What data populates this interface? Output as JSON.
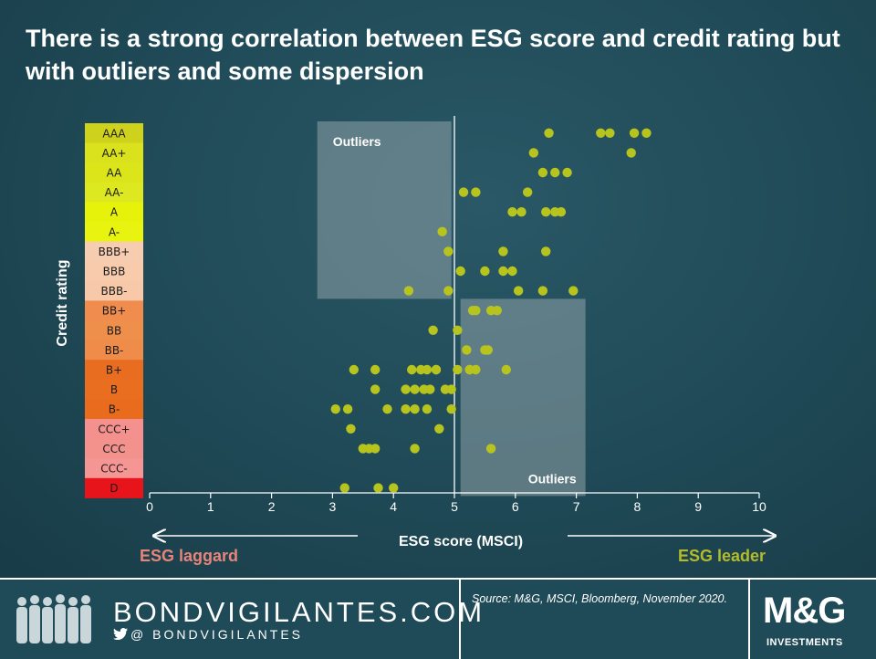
{
  "title": "There is a strong correlation between ESG score and credit rating but with outliers and some dispersion",
  "colors": {
    "background": "#1f4956",
    "dot": "#b8c41e",
    "laggard": "#e8847a",
    "leader": "#b3bb2a",
    "outlier_box": "#8fa2a8"
  },
  "chart_data": {
    "type": "scatter",
    "xlabel": "ESG score (MSCI)",
    "ylabel": "Credit rating",
    "xlim": [
      0,
      10
    ],
    "x_ticks": [
      "0",
      "1",
      "2",
      "3",
      "4",
      "5",
      "6",
      "7",
      "8",
      "9",
      "10"
    ],
    "y_categories": [
      "AAA",
      "AA+",
      "AA",
      "AA-",
      "A",
      "A-",
      "BBB+",
      "BBB",
      "BBB-",
      "BB+",
      "BB",
      "BB-",
      "B+",
      "B",
      "B-",
      "CCC+",
      "CCC",
      "CCC-",
      "D"
    ],
    "rating_colors": [
      "#cfd21c",
      "#d9e21c",
      "#dbe51a",
      "#dee821",
      "#e6f20a",
      "#e8f410",
      "#f7cdb1",
      "#f7cbac",
      "#f7c9a8",
      "#ef8c4e",
      "#ef8f4c",
      "#ef8c4a",
      "#e96d20",
      "#ea6e1f",
      "#e96b1e",
      "#f4908e",
      "#f3918d",
      "#f59594",
      "#e8141b"
    ],
    "vertical_line_x": 5,
    "grid": false,
    "annotations": [
      {
        "text": "Outliers",
        "x_range": [
          2.75,
          4.95
        ],
        "rating_range": [
          "AAA",
          "BBB-"
        ]
      },
      {
        "text": "Outliers",
        "x_range": [
          5.1,
          7.15
        ],
        "rating_range": [
          "BB+",
          "D"
        ]
      }
    ],
    "arrows": {
      "left_label": "ESG laggard",
      "right_label": "ESG leader"
    },
    "points": [
      {
        "x": 6.55,
        "y": "AAA"
      },
      {
        "x": 7.4,
        "y": "AAA"
      },
      {
        "x": 7.55,
        "y": "AAA"
      },
      {
        "x": 7.95,
        "y": "AAA"
      },
      {
        "x": 8.15,
        "y": "AAA"
      },
      {
        "x": 6.3,
        "y": "AA+"
      },
      {
        "x": 7.9,
        "y": "AA+"
      },
      {
        "x": 6.45,
        "y": "AA"
      },
      {
        "x": 6.65,
        "y": "AA"
      },
      {
        "x": 6.85,
        "y": "AA"
      },
      {
        "x": 5.15,
        "y": "AA-"
      },
      {
        "x": 5.35,
        "y": "AA-"
      },
      {
        "x": 6.2,
        "y": "AA-"
      },
      {
        "x": 5.95,
        "y": "A"
      },
      {
        "x": 6.1,
        "y": "A"
      },
      {
        "x": 6.5,
        "y": "A"
      },
      {
        "x": 6.65,
        "y": "A"
      },
      {
        "x": 6.75,
        "y": "A"
      },
      {
        "x": 4.8,
        "y": "A-"
      },
      {
        "x": 4.9,
        "y": "BBB+"
      },
      {
        "x": 5.8,
        "y": "BBB+"
      },
      {
        "x": 6.5,
        "y": "BBB+"
      },
      {
        "x": 5.1,
        "y": "BBB"
      },
      {
        "x": 5.5,
        "y": "BBB"
      },
      {
        "x": 5.8,
        "y": "BBB"
      },
      {
        "x": 5.95,
        "y": "BBB"
      },
      {
        "x": 4.25,
        "y": "BBB-"
      },
      {
        "x": 4.9,
        "y": "BBB-"
      },
      {
        "x": 6.05,
        "y": "BBB-"
      },
      {
        "x": 6.45,
        "y": "BBB-"
      },
      {
        "x": 6.95,
        "y": "BBB-"
      },
      {
        "x": 5.3,
        "y": "BB+"
      },
      {
        "x": 5.35,
        "y": "BB+"
      },
      {
        "x": 5.6,
        "y": "BB+"
      },
      {
        "x": 5.7,
        "y": "BB+"
      },
      {
        "x": 4.65,
        "y": "BB"
      },
      {
        "x": 5.05,
        "y": "BB"
      },
      {
        "x": 5.2,
        "y": "BB-"
      },
      {
        "x": 5.5,
        "y": "BB-"
      },
      {
        "x": 5.55,
        "y": "BB-"
      },
      {
        "x": 4.3,
        "y": "B+"
      },
      {
        "x": 4.45,
        "y": "B+"
      },
      {
        "x": 4.55,
        "y": "B+"
      },
      {
        "x": 4.7,
        "y": "B+"
      },
      {
        "x": 5.05,
        "y": "B+"
      },
      {
        "x": 5.25,
        "y": "B+"
      },
      {
        "x": 5.35,
        "y": "B+"
      },
      {
        "x": 3.7,
        "y": "B"
      },
      {
        "x": 4.2,
        "y": "B"
      },
      {
        "x": 4.35,
        "y": "B"
      },
      {
        "x": 4.5,
        "y": "B"
      },
      {
        "x": 4.6,
        "y": "B"
      },
      {
        "x": 4.85,
        "y": "B"
      },
      {
        "x": 4.95,
        "y": "B"
      },
      {
        "x": 3.35,
        "y": "B+"
      },
      {
        "x": 3.7,
        "y": "B+"
      },
      {
        "x": 4.7,
        "y": "B+"
      },
      {
        "x": 5.25,
        "y": "B+"
      },
      {
        "x": 5.85,
        "y": "B+"
      },
      {
        "x": 3.05,
        "y": "B-"
      },
      {
        "x": 3.25,
        "y": "B-"
      },
      {
        "x": 3.9,
        "y": "B-"
      },
      {
        "x": 4.2,
        "y": "B-"
      },
      {
        "x": 4.35,
        "y": "B-"
      },
      {
        "x": 4.55,
        "y": "B-"
      },
      {
        "x": 4.95,
        "y": "B-"
      },
      {
        "x": 3.3,
        "y": "CCC+"
      },
      {
        "x": 4.75,
        "y": "CCC+"
      },
      {
        "x": 3.5,
        "y": "CCC"
      },
      {
        "x": 3.6,
        "y": "CCC"
      },
      {
        "x": 3.7,
        "y": "CCC"
      },
      {
        "x": 4.35,
        "y": "CCC"
      },
      {
        "x": 5.6,
        "y": "CCC"
      },
      {
        "x": 3.2,
        "y": "D"
      },
      {
        "x": 3.75,
        "y": "D"
      },
      {
        "x": 4.0,
        "y": "D"
      }
    ]
  },
  "footer": {
    "site": "BONDVIGILANTES.COM",
    "handle": "@ BONDVIGILANTES",
    "source": "Source: M&G, MSCI, Bloomberg, November 2020.",
    "brand": "M&G",
    "brand_sub": "INVESTMENTS"
  }
}
